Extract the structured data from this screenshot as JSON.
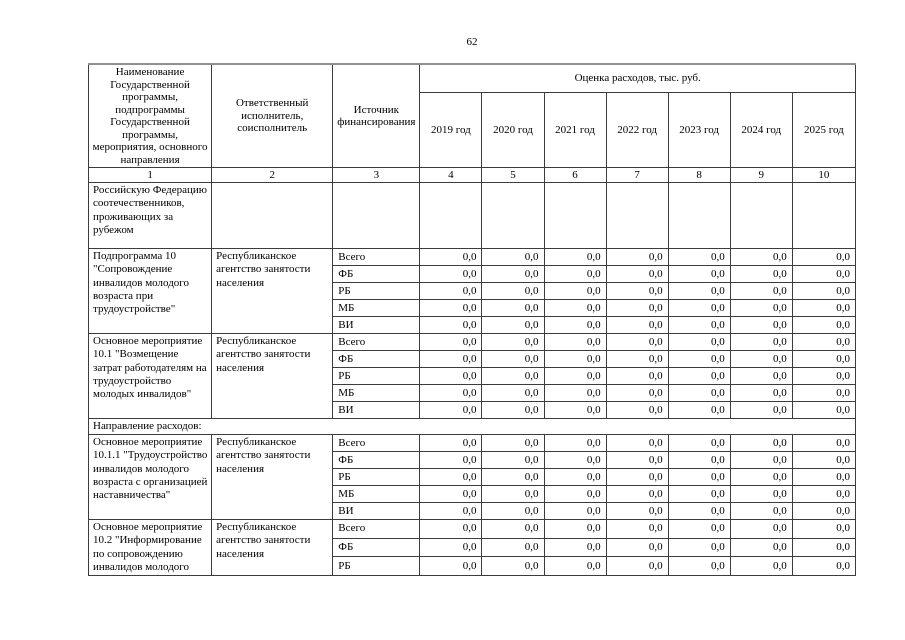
{
  "page": {
    "number": "62"
  },
  "table": {
    "header": {
      "name_col": "Наименование Государственной программы, подпрограммы Государственной программы, мероприятия, основного направления",
      "executor_col": "Ответственный исполнитель, соисполнитель",
      "source_col": "Источник финансирования",
      "expenses_title": "Оценка расходов, тыс. руб.",
      "years": [
        "2019 год",
        "2020 год",
        "2021 год",
        "2022 год",
        "2023 год",
        "2024 год",
        "2025 год"
      ],
      "column_numbers": [
        "1",
        "2",
        "3",
        "4",
        "5",
        "6",
        "7",
        "8",
        "9",
        "10"
      ]
    },
    "rows": [
      {
        "type": "continuation",
        "name": "Российскую Федерацию соотечественников, проживающих за рубежом"
      },
      {
        "type": "block",
        "name": "Подпрограмма 10 \"Сопровождение инвалидов молодого возраста при трудоустройстве\"",
        "executor": "Республиканское агентство занятости населения",
        "sources": [
          {
            "label": "Всего",
            "values": [
              "0,0",
              "0,0",
              "0,0",
              "0,0",
              "0,0",
              "0,0",
              "0,0"
            ]
          },
          {
            "label": "ФБ",
            "values": [
              "0,0",
              "0,0",
              "0,0",
              "0,0",
              "0,0",
              "0,0",
              "0,0"
            ]
          },
          {
            "label": "РБ",
            "values": [
              "0,0",
              "0,0",
              "0,0",
              "0,0",
              "0,0",
              "0,0",
              "0,0"
            ]
          },
          {
            "label": "МБ",
            "values": [
              "0,0",
              "0,0",
              "0,0",
              "0,0",
              "0,0",
              "0,0",
              "0,0"
            ]
          },
          {
            "label": "ВИ",
            "values": [
              "0,0",
              "0,0",
              "0,0",
              "0,0",
              "0,0",
              "0,0",
              "0,0"
            ]
          }
        ]
      },
      {
        "type": "block",
        "name": "Основное мероприятие 10.1 \"Возмещение затрат работодателям на трудоустройство молодых инвалидов\"",
        "executor": "Республиканское агентство занятости населения",
        "sources": [
          {
            "label": "Всего",
            "values": [
              "0,0",
              "0,0",
              "0,0",
              "0,0",
              "0,0",
              "0,0",
              "0,0"
            ]
          },
          {
            "label": "ФБ",
            "values": [
              "0,0",
              "0,0",
              "0,0",
              "0,0",
              "0,0",
              "0,0",
              "0,0"
            ]
          },
          {
            "label": "РБ",
            "values": [
              "0,0",
              "0,0",
              "0,0",
              "0,0",
              "0,0",
              "0,0",
              "0,0"
            ]
          },
          {
            "label": "МБ",
            "values": [
              "0,0",
              "0,0",
              "0,0",
              "0,0",
              "0,0",
              "0,0",
              "0,0"
            ]
          },
          {
            "label": "ВИ",
            "values": [
              "0,0",
              "0,0",
              "0,0",
              "0,0",
              "0,0",
              "0,0",
              "0,0"
            ]
          }
        ]
      },
      {
        "type": "section",
        "name": "Направление расходов:"
      },
      {
        "type": "block",
        "name": "Основное мероприятие 10.1.1 \"Трудоустройство инвалидов молодого возраста с организацией наставничества\"",
        "executor": "Республиканское агентство занятости населения",
        "sources": [
          {
            "label": "Всего",
            "values": [
              "0,0",
              "0,0",
              "0,0",
              "0,0",
              "0,0",
              "0,0",
              "0,0"
            ]
          },
          {
            "label": "ФБ",
            "values": [
              "0,0",
              "0,0",
              "0,0",
              "0,0",
              "0,0",
              "0,0",
              "0,0"
            ]
          },
          {
            "label": "РБ",
            "values": [
              "0,0",
              "0,0",
              "0,0",
              "0,0",
              "0,0",
              "0,0",
              "0,0"
            ]
          },
          {
            "label": "МБ",
            "values": [
              "0,0",
              "0,0",
              "0,0",
              "0,0",
              "0,0",
              "0,0",
              "0,0"
            ]
          },
          {
            "label": "ВИ",
            "values": [
              "0,0",
              "0,0",
              "0,0",
              "0,0",
              "0,0",
              "0,0",
              "0,0"
            ]
          }
        ]
      },
      {
        "type": "block",
        "name": "Основное мероприятие 10.2 \"Информирование по сопровождению инвалидов молодого",
        "executor": "Республиканское агентство занятости населения",
        "sources": [
          {
            "label": "Всего",
            "values": [
              "0,0",
              "0,0",
              "0,0",
              "0,0",
              "0,0",
              "0,0",
              "0,0"
            ]
          },
          {
            "label": "ФБ",
            "values": [
              "0,0",
              "0,0",
              "0,0",
              "0,0",
              "0,0",
              "0,0",
              "0,0"
            ]
          },
          {
            "label": "РБ",
            "values": [
              "0,0",
              "0,0",
              "0,0",
              "0,0",
              "0,0",
              "0,0",
              "0,0"
            ]
          }
        ]
      }
    ]
  }
}
